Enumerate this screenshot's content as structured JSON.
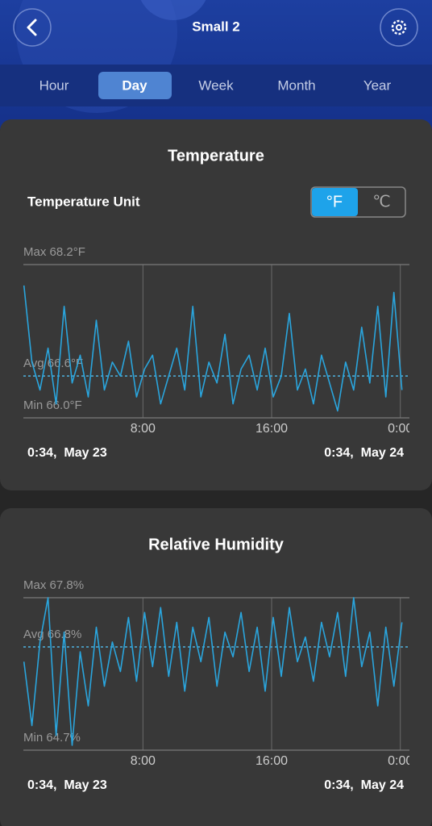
{
  "header": {
    "title": "Small 2"
  },
  "tabs": {
    "items": [
      "Hour",
      "Day",
      "Week",
      "Month",
      "Year"
    ],
    "selected": 1
  },
  "unit_toggle": {
    "label": "Temperature Unit",
    "options": [
      "°F",
      "℃"
    ],
    "selected": 0
  },
  "chart_data": [
    {
      "type": "line",
      "title": "Temperature",
      "color": "#2aa5dd",
      "x": [
        0.6,
        1.1,
        1.6,
        2.1,
        2.6,
        3.1,
        3.6,
        4.1,
        4.6,
        5.1,
        5.6,
        6.1,
        6.6,
        7.1,
        7.6,
        8.1,
        8.6,
        9.1,
        9.6,
        10.1,
        10.6,
        11.1,
        11.6,
        12.1,
        12.6,
        13.1,
        13.6,
        14.1,
        14.6,
        15.1,
        15.6,
        16.1,
        16.6,
        17.1,
        17.6,
        18.1,
        18.6,
        19.1,
        19.6,
        20.1,
        20.6,
        21.1,
        21.6,
        22.1,
        22.6,
        23.1,
        23.6,
        24.1
      ],
      "values": [
        67.9,
        66.8,
        66.4,
        67.0,
        66.2,
        67.6,
        66.5,
        66.9,
        66.3,
        67.4,
        66.4,
        66.8,
        66.6,
        67.1,
        66.3,
        66.7,
        66.9,
        66.2,
        66.6,
        67.0,
        66.4,
        67.6,
        66.3,
        66.8,
        66.5,
        67.2,
        66.2,
        66.7,
        66.9,
        66.4,
        67.0,
        66.3,
        66.6,
        67.5,
        66.4,
        66.7,
        66.2,
        66.9,
        66.5,
        66.1,
        66.8,
        66.4,
        67.3,
        66.5,
        67.6,
        66.3,
        67.8,
        66.4
      ],
      "xlim": [
        0.5667,
        24.5667
      ],
      "xticks": [
        {
          "value": 8,
          "label": "8:00"
        },
        {
          "value": 16,
          "label": "16:00"
        },
        {
          "value": 24,
          "label": "0:00"
        }
      ],
      "ylim": [
        66.0,
        68.2
      ],
      "yticks": [
        {
          "value": 68.2,
          "label": "Max 68.2°F"
        },
        {
          "value": 66.6,
          "label": "Avg 66.6°F"
        },
        {
          "value": 66.0,
          "label": "Min 66.0°F"
        }
      ],
      "start_label": "0:34,  May 23",
      "end_label": "0:34,  May 24"
    },
    {
      "type": "line",
      "title": "Relative Humidity",
      "color": "#2aa5dd",
      "x": [
        0.6,
        1.1,
        1.6,
        2.1,
        2.6,
        3.1,
        3.6,
        4.1,
        4.6,
        5.1,
        5.6,
        6.1,
        6.6,
        7.1,
        7.6,
        8.1,
        8.6,
        9.1,
        9.6,
        10.1,
        10.6,
        11.1,
        11.6,
        12.1,
        12.6,
        13.1,
        13.6,
        14.1,
        14.6,
        15.1,
        15.6,
        16.1,
        16.6,
        17.1,
        17.6,
        18.1,
        18.6,
        19.1,
        19.6,
        20.1,
        20.6,
        21.1,
        21.6,
        22.1,
        22.6,
        23.1,
        23.6,
        24.1
      ],
      "values": [
        66.5,
        65.2,
        66.9,
        67.8,
        65.0,
        67.1,
        64.8,
        66.7,
        65.6,
        67.2,
        66.0,
        66.9,
        66.3,
        67.4,
        66.1,
        67.5,
        66.4,
        67.6,
        66.2,
        67.3,
        65.9,
        67.2,
        66.5,
        67.4,
        66.0,
        67.1,
        66.6,
        67.5,
        66.3,
        67.2,
        65.9,
        67.4,
        66.2,
        67.6,
        66.5,
        67.0,
        66.1,
        67.3,
        66.6,
        67.5,
        66.2,
        67.8,
        66.4,
        67.1,
        65.6,
        67.2,
        66.0,
        67.3
      ],
      "xlim": [
        0.5667,
        24.5667
      ],
      "xticks": [
        {
          "value": 8,
          "label": "8:00"
        },
        {
          "value": 16,
          "label": "16:00"
        },
        {
          "value": 24,
          "label": "0:00"
        }
      ],
      "ylim": [
        64.7,
        67.8
      ],
      "yticks": [
        {
          "value": 67.8,
          "label": "Max 67.8%"
        },
        {
          "value": 66.8,
          "label": "Avg 66.8%"
        },
        {
          "value": 64.7,
          "label": "Min 64.7%"
        }
      ],
      "start_label": "0:34,  May 23",
      "end_label": "0:34,  May 24"
    }
  ]
}
